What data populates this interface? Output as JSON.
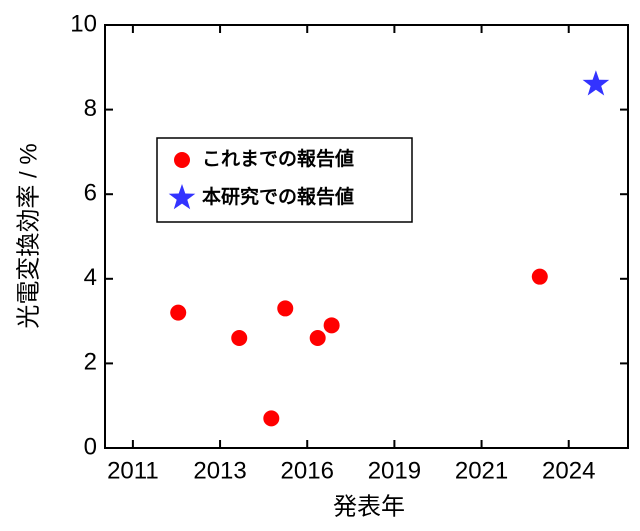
{
  "chart_data": {
    "type": "scatter",
    "xlabel": "発表年",
    "ylabel": "光電変換効率 / %",
    "xlim": [
      2010.2,
      2025.2
    ],
    "ylim": [
      0,
      10
    ],
    "xticks": [
      2011,
      {
        "value": 2013.5,
        "label": "2013"
      },
      2016,
      {
        "value": 2018.5,
        "label": "2019"
      },
      2021,
      {
        "value": 2023.5,
        "label": "2024"
      }
    ],
    "yticks": [
      0,
      2,
      4,
      6,
      8,
      10
    ],
    "legend": "upper left",
    "series": [
      {
        "name": "これまでの報告値",
        "color": "#ff0000",
        "marker": "circle",
        "x": [
          2012.3,
          2014.05,
          2014.97,
          2015.37,
          2016.3,
          2016.7,
          2022.67
        ],
        "values": [
          3.2,
          2.6,
          0.7,
          3.3,
          2.6,
          2.9,
          4.05
        ]
      },
      {
        "name": "本研究での報告値",
        "color": "#3333ff",
        "marker": "star",
        "x": [
          2024.28
        ],
        "values": [
          8.6
        ]
      }
    ]
  }
}
